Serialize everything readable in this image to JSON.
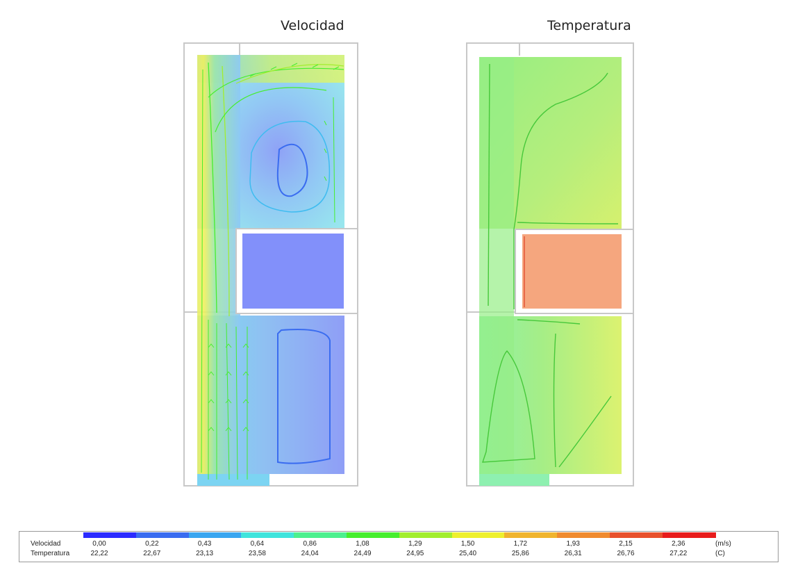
{
  "titles": {
    "velocity": "Velocidad",
    "temperature": "Temperatura"
  },
  "chart_data": [
    {
      "type": "heatmap",
      "title": "Velocidad",
      "colorbar": {
        "min": 0.0,
        "max": 2.36,
        "unit": "(m/s)"
      }
    },
    {
      "type": "heatmap",
      "title": "Temperatura",
      "colorbar": {
        "min": 22.22,
        "max": 27.22,
        "unit": "(C)"
      }
    }
  ],
  "legend": {
    "row_labels": {
      "velocity": "Velocidad",
      "temperature": "Temperatura"
    },
    "colors": [
      "#2b2bff",
      "#3a6cf0",
      "#3aa6f0",
      "#3fe4dc",
      "#4cf08e",
      "#46ee2e",
      "#a2ee2e",
      "#eef02e",
      "#f0b42e",
      "#f08a2e",
      "#e8502c",
      "#e81c1c"
    ],
    "velocity_ticks": [
      "0,00",
      "0,22",
      "0,43",
      "0,64",
      "0,86",
      "1,08",
      "1,29",
      "1,50",
      "1,72",
      "1,93",
      "2,15",
      "2,36"
    ],
    "temperature_ticks": [
      "22,22",
      "22,67",
      "23,13",
      "23,58",
      "24,04",
      "24,49",
      "24,95",
      "25,40",
      "25,86",
      "26,31",
      "26,76",
      "27,22"
    ],
    "units": {
      "velocity": "(m/s)",
      "temperature": "(C)"
    }
  }
}
